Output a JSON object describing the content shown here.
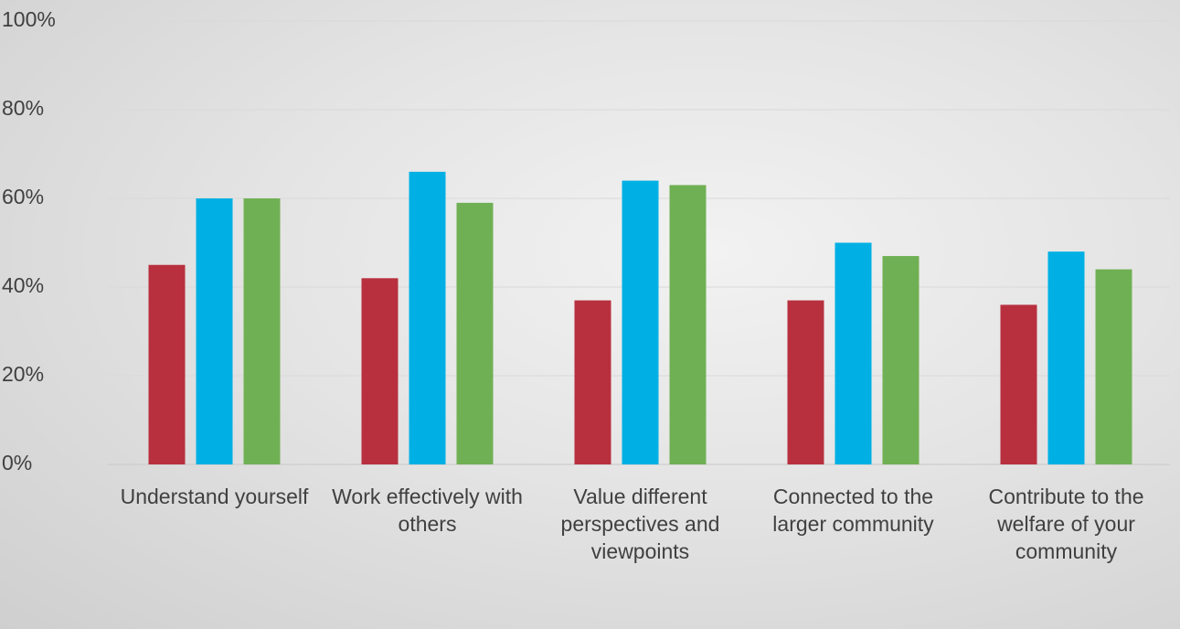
{
  "chart_data": {
    "type": "bar",
    "categories": [
      "Understand yourself",
      "Work effectively with others",
      "Value different perspectives and viewpoints",
      "Connected to the larger community",
      "Contribute to the welfare of your community"
    ],
    "series": [
      {
        "color": "#b8303e",
        "values": [
          45,
          42,
          37,
          37,
          36
        ]
      },
      {
        "color": "#00b0e4",
        "values": [
          60,
          66,
          64,
          50,
          48
        ]
      },
      {
        "color": "#70b054",
        "values": [
          60,
          59,
          63,
          47,
          44
        ]
      }
    ],
    "ylim": [
      0,
      100
    ],
    "yticks": [
      {
        "value": 0,
        "label": "0%"
      },
      {
        "value": 20,
        "label": "20%"
      },
      {
        "value": 40,
        "label": "40%"
      },
      {
        "value": 60,
        "label": "60%"
      },
      {
        "value": 80,
        "label": "80%"
      },
      {
        "value": 100,
        "label": "100%"
      }
    ],
    "grid": true
  }
}
